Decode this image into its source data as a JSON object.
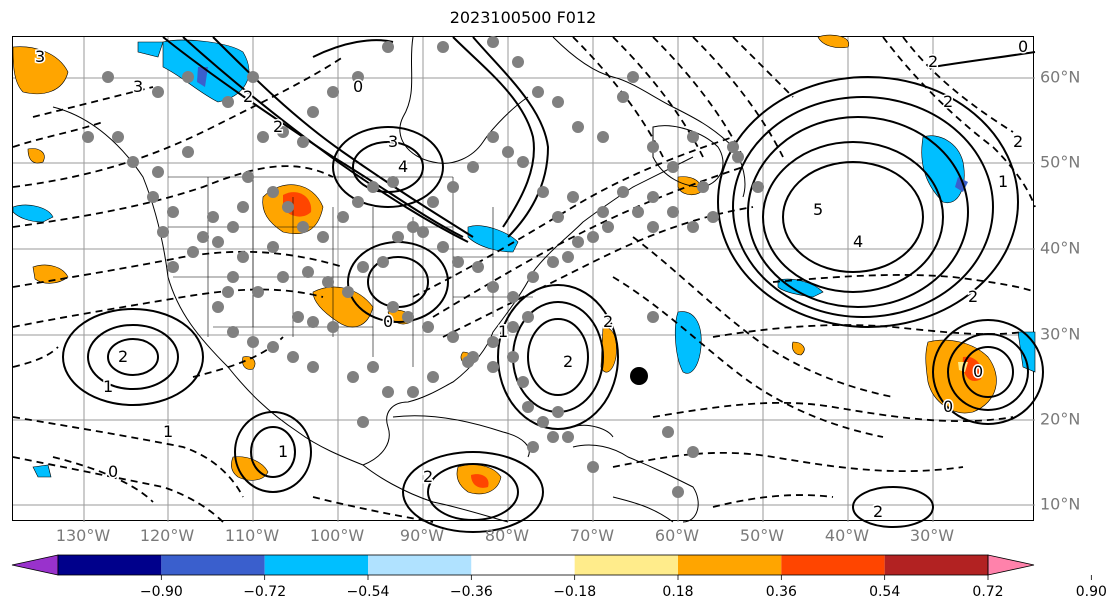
{
  "title": "2023100500 F012",
  "lon_labels": [
    "130°W",
    "120°W",
    "110°W",
    "100°W",
    "90°W",
    "80°W",
    "70°W",
    "60°W",
    "50°W",
    "40°W",
    "30°W"
  ],
  "lat_labels": [
    "60°N",
    "50°N",
    "40°N",
    "30°N",
    "20°N",
    "10°N"
  ],
  "colorbar": {
    "ticks": [
      "−0.90",
      "−0.72",
      "−0.54",
      "−0.36",
      "−0.18",
      "0.18",
      "0.36",
      "0.54",
      "0.72",
      "0.90"
    ],
    "colors": [
      "#9932cc",
      "#00008b",
      "#3a5fcd",
      "#00bfff",
      "#b0e2ff",
      "#ffffff",
      "#ffec8b",
      "#ffa500",
      "#ff4500",
      "#b22222",
      "#ff82ab"
    ]
  },
  "contour_labels": [
    "3",
    "3",
    "2",
    "0",
    "3",
    "4",
    "2",
    "5",
    "4",
    "2",
    "0",
    "2",
    "1",
    "2",
    "2",
    "1",
    "0",
    "2",
    "2",
    "0",
    "1",
    "2",
    "1",
    "0",
    "0",
    "2",
    "1",
    "2"
  ],
  "storm_marker": "black dot"
}
